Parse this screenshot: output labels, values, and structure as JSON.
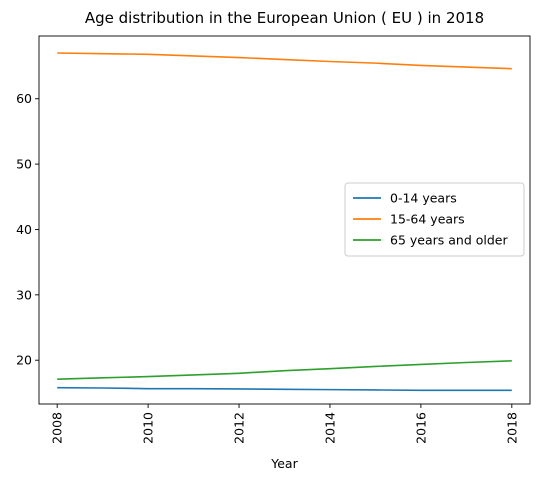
{
  "chart_data": {
    "type": "line",
    "title": "Age distribution in the European Union ( EU ) in 2018",
    "xlabel": "Year",
    "ylabel": "",
    "x": [
      2008,
      2009,
      2010,
      2011,
      2012,
      2013,
      2014,
      2015,
      2016,
      2017,
      2018
    ],
    "xlim": [
      2007.6,
      2018.4
    ],
    "ylim": [
      13.3,
      69.6
    ],
    "xticks": [
      2008,
      2010,
      2012,
      2014,
      2016,
      2018
    ],
    "xtick_labels": [
      "2008",
      "2010",
      "2012",
      "2014",
      "2016",
      "2018"
    ],
    "yticks": [
      20,
      30,
      40,
      50,
      60
    ],
    "ytick_labels": [
      "20",
      "30",
      "40",
      "50",
      "60"
    ],
    "grid": false,
    "legend_position": "center-right",
    "series": [
      {
        "name": "0-14 years",
        "color": "#1f77b4",
        "values": [
          15.8,
          15.75,
          15.65,
          15.65,
          15.6,
          15.55,
          15.5,
          15.45,
          15.4,
          15.4,
          15.4
        ]
      },
      {
        "name": "15-64 years",
        "color": "#ff7f0e",
        "values": [
          67.0,
          66.9,
          66.8,
          66.55,
          66.3,
          66.0,
          65.7,
          65.45,
          65.1,
          64.85,
          64.6
        ]
      },
      {
        "name": "65 years and older",
        "color": "#2ca02c",
        "values": [
          17.1,
          17.3,
          17.5,
          17.75,
          18.0,
          18.4,
          18.7,
          19.05,
          19.35,
          19.65,
          19.9
        ]
      }
    ]
  }
}
